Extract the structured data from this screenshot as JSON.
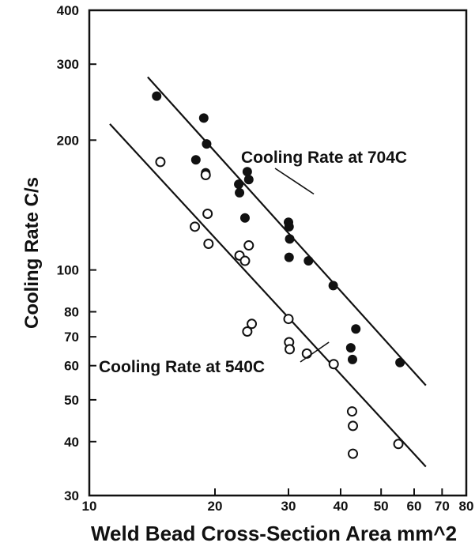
{
  "chart_data": {
    "type": "scatter",
    "title": "",
    "xlabel": "Weld Bead Cross-Section Area mm^2",
    "ylabel": "Cooling Rate C/s",
    "x_scale": "log",
    "y_scale": "log",
    "xlim": [
      10,
      80
    ],
    "ylim": [
      30,
      400
    ],
    "x_ticks": [
      10,
      20,
      30,
      40,
      50,
      60,
      70,
      80
    ],
    "x_tick_labels": [
      "10",
      "20",
      "30",
      "40",
      "50",
      "60",
      "70",
      "80"
    ],
    "y_ticks": [
      30,
      40,
      50,
      60,
      70,
      80,
      100,
      200,
      300,
      400
    ],
    "y_tick_labels": [
      "30",
      "40",
      "50",
      "60",
      "70",
      "80",
      "100",
      "200",
      "300",
      "400"
    ],
    "grid": false,
    "series": [
      {
        "name": "Cooling Rate at 704C",
        "marker": "filled-circle",
        "color": "#111111",
        "points": [
          [
            14.5,
            253
          ],
          [
            18.0,
            180
          ],
          [
            18.8,
            225
          ],
          [
            19.1,
            196
          ],
          [
            19.0,
            168
          ],
          [
            22.8,
            158
          ],
          [
            22.9,
            151
          ],
          [
            23.9,
            169
          ],
          [
            24.1,
            162
          ],
          [
            23.6,
            132
          ],
          [
            30.0,
            129
          ],
          [
            30.1,
            126
          ],
          [
            30.2,
            118
          ],
          [
            30.1,
            107
          ],
          [
            33.5,
            105
          ],
          [
            38.4,
            92
          ],
          [
            42.3,
            66
          ],
          [
            42.7,
            62
          ],
          [
            43.5,
            73
          ],
          [
            55.5,
            61
          ]
        ]
      },
      {
        "name": "Cooling Rate at 540C",
        "marker": "open-circle",
        "color": "#111111",
        "points": [
          [
            14.8,
            178
          ],
          [
            17.9,
            126
          ],
          [
            19.0,
            166
          ],
          [
            19.2,
            135
          ],
          [
            19.3,
            115
          ],
          [
            22.9,
            108
          ],
          [
            23.6,
            105
          ],
          [
            24.1,
            114
          ],
          [
            24.5,
            75
          ],
          [
            23.9,
            72
          ],
          [
            30.0,
            77
          ],
          [
            30.1,
            68
          ],
          [
            30.2,
            65.5
          ],
          [
            33.2,
            64
          ],
          [
            38.5,
            60.5
          ],
          [
            42.6,
            47
          ],
          [
            42.8,
            43.5
          ],
          [
            42.8,
            37.5
          ],
          [
            55.0,
            39.5
          ]
        ]
      }
    ],
    "fit_lines": [
      {
        "series": "Cooling Rate at 704C",
        "from": [
          13.8,
          280
        ],
        "to": [
          64,
          54
        ]
      },
      {
        "series": "Cooling Rate at 540C",
        "from": [
          11.2,
          218
        ],
        "to": [
          64,
          35
        ]
      }
    ],
    "annotations": [
      {
        "text": "Cooling Rate at 704C",
        "points_to": [
          34.5,
          150
        ]
      },
      {
        "text": "Cooling Rate at 540C",
        "points_to": [
          37.5,
          68
        ]
      }
    ]
  }
}
